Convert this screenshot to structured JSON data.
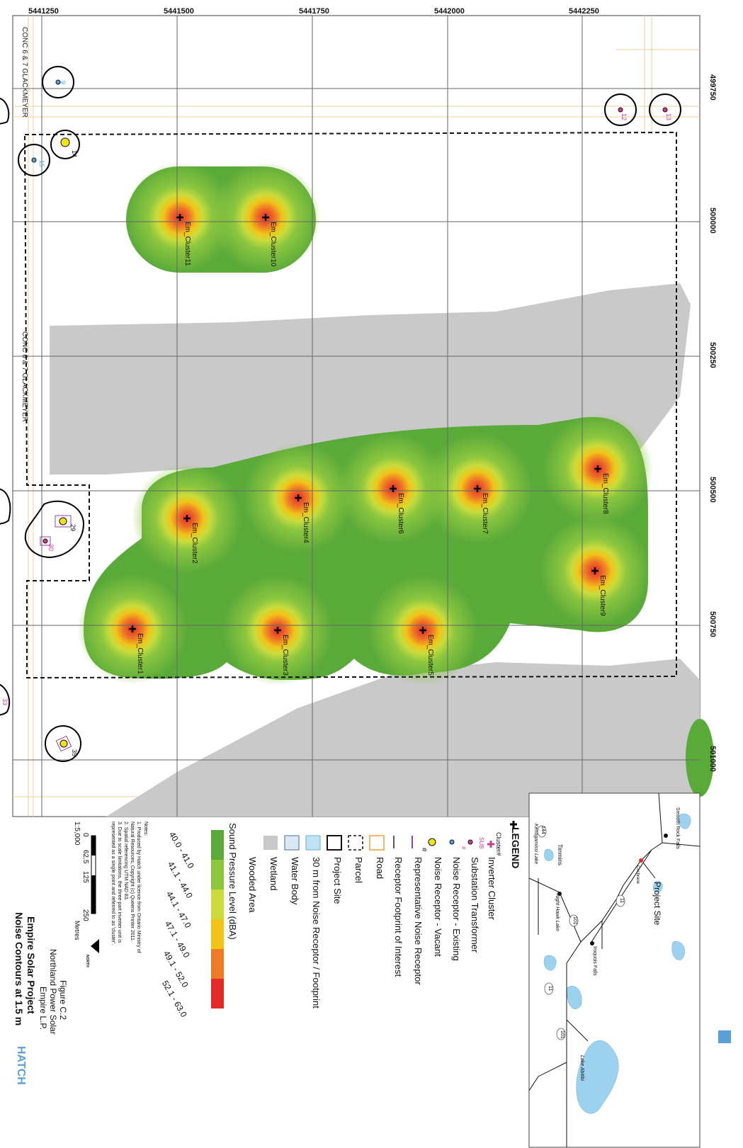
{
  "grid": {
    "easting_ticks": [
      "5441250",
      "5441500",
      "5441750",
      "5442000",
      "5442250"
    ],
    "northing_ticks": [
      "499750",
      "500000",
      "500250",
      "500500",
      "500750",
      "501000"
    ]
  },
  "roads": {
    "label_1": "CONC 6 & 7 GLACKMEYER",
    "label_2": "CONC 6 & 7 GLACKMEYER"
  },
  "receptors": [
    "9",
    "12",
    "13",
    "14",
    "15",
    "29",
    "30",
    "33",
    "35"
  ],
  "clusters": [
    "Em_Cluster1",
    "Em_Cluster2",
    "Em_Cluster3",
    "Em_Cluster4",
    "Em_Cluster5",
    "Em_Cluster6",
    "Em_Cluster7",
    "Em_Cluster8",
    "Em_Cluster9",
    "Em_Cluster10",
    "Em_Cluster11"
  ],
  "inset": {
    "places": [
      "Smooth Rock Falls",
      "Cochrane",
      "Iroquois Falls",
      "Timmins",
      "Kenogamissi Lake",
      "Night Hawk Lake",
      "Lake Abitibi"
    ],
    "highways": [
      "11",
      "101",
      "144",
      "11",
      "101"
    ],
    "callout": "Project Site"
  },
  "legend": {
    "title": "LEGEND",
    "items": [
      "Cluster#",
      "Inverter Cluster",
      "SUB",
      "Substation Transformer",
      "#",
      "Noise Receptor - Existing",
      "Noise Receptor - Vacant",
      "#",
      "Representative Noise Receptor",
      "Receptor Footprint of Interest",
      "Road",
      "Parcel",
      "Project Site",
      "30 m from Noise Receptor / Footprint",
      "Water Body",
      "Wetland",
      "Wooded Area"
    ],
    "spl_title": "Sound Pressure Level (dBA)",
    "spl_classes": [
      "40.0 - 41.0",
      "41.1 - 44.0",
      "44.1 - 47.0",
      "47.1 - 49.0",
      "49.1 - 52.0",
      "52.1 - 63.0"
    ],
    "spl_colors": [
      "#5aaa3a",
      "#8cc63f",
      "#c9dc3c",
      "#f2c418",
      "#ee7b26",
      "#e52a2a"
    ]
  },
  "notes": {
    "title": "Notes:",
    "lines": [
      "1. Produced by Hatch under licence from Ontario Ministry of",
      "Natural Resources, Copyright (c) Queens Printer 2011.",
      "2. Spatial referencing UTM NAD 83.",
      "3. Due to scale limitations, the three-part inverter unit is",
      "represented as a single point and referred to as 'cluster'."
    ]
  },
  "scale": {
    "labels": [
      "0",
      "62.5",
      "125",
      "250"
    ],
    "units": "Metres",
    "ratio": "1:5,000",
    "north": "NORTH"
  },
  "title_block": {
    "figure": "Figure C.2",
    "client": "Northland Power Solar",
    "client2": "Empire L.P.",
    "project": "Empire Solar Project",
    "subtitle": "Noise Contours at 1.5 m",
    "logo": "HATCH"
  }
}
